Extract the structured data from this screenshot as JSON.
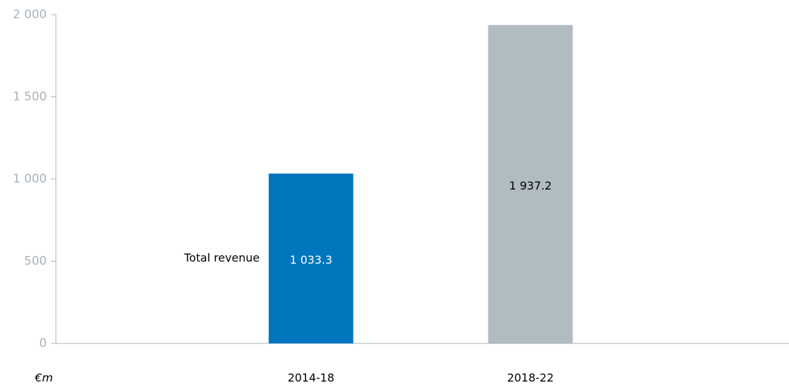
{
  "chart_data": {
    "type": "bar",
    "series_label": "Total revenue",
    "unit": "€m",
    "categories": [
      "2014-18",
      "2018-22"
    ],
    "values": [
      1033.3,
      1937.2
    ],
    "value_labels": [
      "1 033.3",
      "1 937.2"
    ],
    "colors": [
      "#0076be",
      "#b1bbc2"
    ],
    "label_colors": [
      "#ffffff",
      "#000000"
    ],
    "ylim": [
      0,
      2000
    ],
    "yticks": [
      0,
      500,
      {
        "value": 1000,
        "label": "1 000"
      },
      {
        "value": 1500,
        "label": "1 500"
      },
      {
        "value": 2000,
        "label": "2 000"
      }
    ]
  }
}
